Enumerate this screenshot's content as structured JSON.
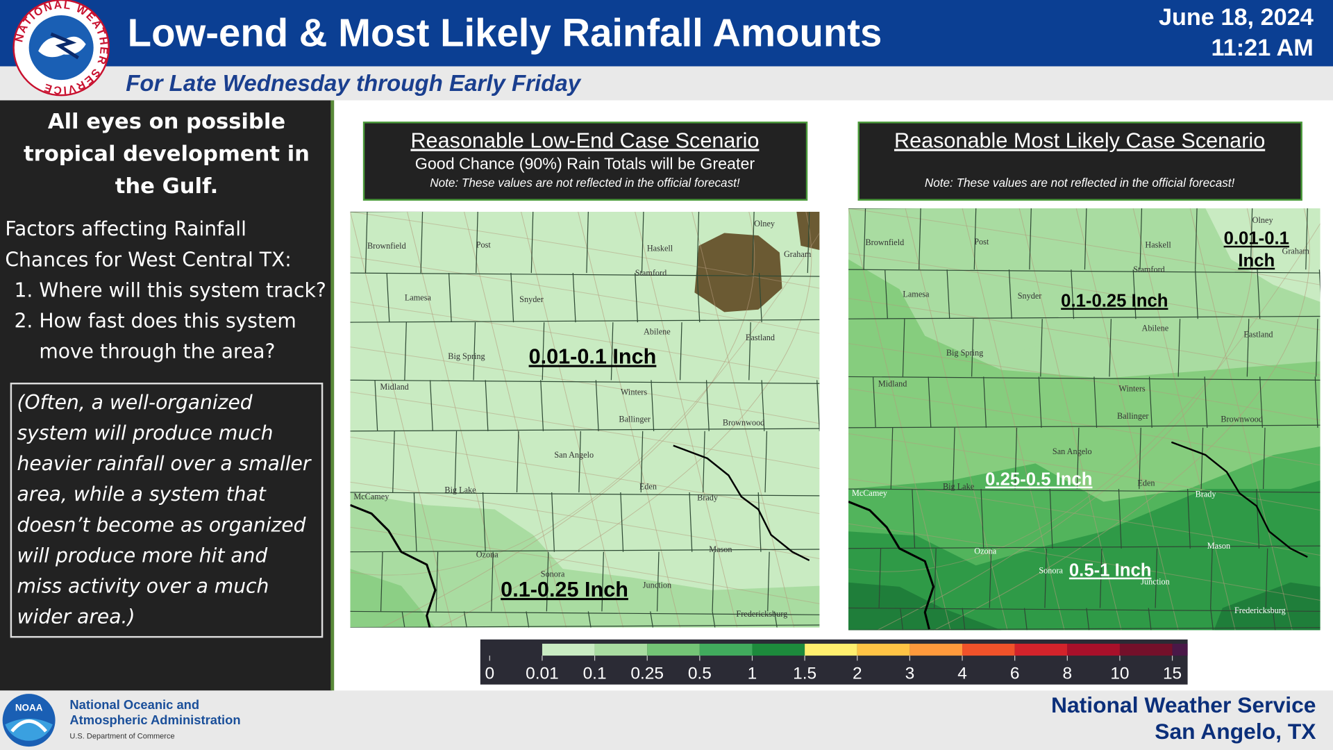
{
  "header": {
    "title": "Low-end & Most Likely Rainfall Amounts",
    "subtitle": "For Late Wednesday through Early Friday",
    "date": "June 18, 2024",
    "time": "11:21 AM",
    "logo_text": "NATIONAL WEATHER SERVICE"
  },
  "sidebar": {
    "headline": "All eyes on possible tropical development in the Gulf.",
    "factors_intro": "Factors affecting Rainfall Chances for West Central TX:",
    "factors": [
      "Where will this system track?",
      "How fast does this system move through the area?"
    ],
    "note": "(Often, a well-organized system will produce much heavier rainfall over a smaller area, while a system that doesn’t become as organized will produce more hit and miss activity over a much wider area.)"
  },
  "maps": [
    {
      "title": "Reasonable Low-End Case Scenario",
      "subtitle": "Good Chance (90%) Rain Totals will be Greater",
      "note": "Note: These values are not reflected in the official forecast!",
      "labels": [
        "0.01-0.1 Inch",
        "0.1-0.25 Inch"
      ]
    },
    {
      "title": "Reasonable Most Likely Case Scenario",
      "note": "Note: These values are not reflected in the official forecast!",
      "labels": [
        "0.1-0.25 Inch",
        "0.25-0.5 Inch",
        "0.5-1 Inch",
        "0.01-0.1 Inch"
      ]
    }
  ],
  "cities": [
    "Brownfield",
    "Post",
    "Haskell",
    "Olney",
    "Graham",
    "Stamford",
    "Lamesa",
    "Snyder",
    "Abilene",
    "Eastland",
    "Big Spring",
    "Midland",
    "Winters",
    "Ballinger",
    "Brownwood",
    "San Angelo",
    "Eden",
    "Brady",
    "Big Lake",
    "McCamey",
    "Ozona",
    "Mason",
    "Sonora",
    "Junction",
    "Fredericksburg"
  ],
  "legend": {
    "ticks": [
      "0",
      "0.01",
      "0.1",
      "0.25",
      "0.5",
      "1",
      "1.5",
      "2",
      "3",
      "4",
      "6",
      "8",
      "10",
      "15"
    ]
  },
  "footer": {
    "noaa_line1": "National Oceanic and",
    "noaa_line2": "Atmospheric Administration",
    "department": "U.S. Department of Commerce",
    "noaa_logo": "NOAA",
    "office": "National Weather Service",
    "location": "San Angelo, TX"
  }
}
